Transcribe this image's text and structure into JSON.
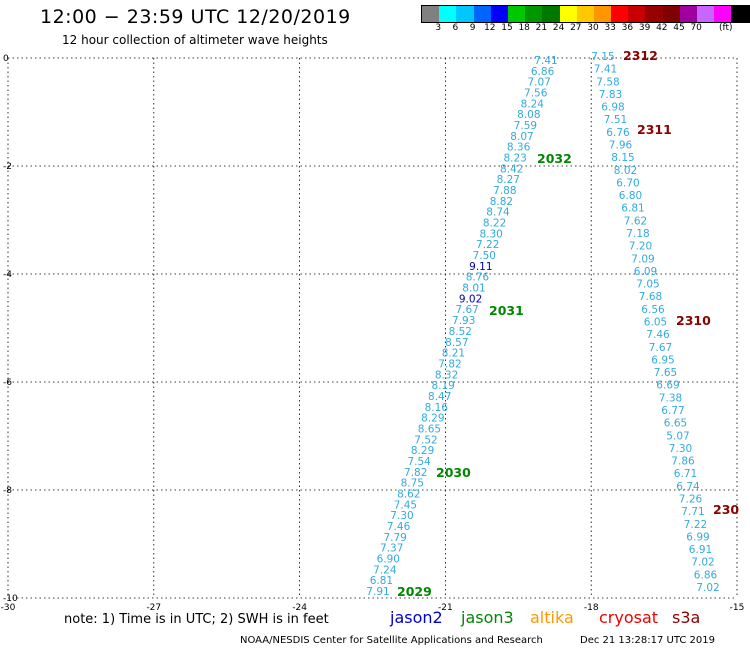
{
  "header": {
    "title": "12:00 − 23:59 UTC 12/20/2019",
    "subtitle": "12 hour collection of altimeter wave heights"
  },
  "colorbar": {
    "colors": [
      "#808080",
      "#00ffff",
      "#00c8ff",
      "#0064ff",
      "#0000ff",
      "#00c800",
      "#009600",
      "#007800",
      "#ffff00",
      "#ffc800",
      "#ff9600",
      "#ff0000",
      "#c80000",
      "#960000",
      "#800000",
      "#a000a0",
      "#c864ff",
      "#ff00ff",
      "#000000"
    ],
    "labels": [
      "3",
      "6",
      "9",
      "12",
      "15",
      "18",
      "21",
      "24",
      "27",
      "30",
      "33",
      "36",
      "39",
      "42",
      "45",
      "70"
    ],
    "unit": "(ft)"
  },
  "map": {
    "lon_range": [
      -30,
      -15
    ],
    "lat_range": [
      -10,
      0
    ],
    "lon_ticks": [
      "-30",
      "-27",
      "-24",
      "-21",
      "-18",
      "-15"
    ],
    "lat_ticks": [
      "0",
      "-2",
      "-4",
      "-6",
      "-8",
      "-10"
    ],
    "tracks": [
      {
        "color": "#33aadd",
        "values": [
          "7.41",
          "6.86",
          "7.07",
          "7.56",
          "8.24",
          "8.08",
          "7.59",
          "8.07",
          "8.36",
          "8.23",
          "8.42",
          "8.27",
          "7.88",
          "8.82",
          "8.74",
          "8.22",
          "8.30",
          "7.22",
          "7.50",
          "9.11",
          "8.76",
          "8.01",
          "9.02",
          "7.67",
          "7.93",
          "8.52",
          "8.57",
          "8.21",
          "7.82",
          "8.32",
          "8.19",
          "8.47",
          "8.16",
          "8.29",
          "8.65",
          "7.52",
          "8.29",
          "7.54",
          "7.82",
          "8.75",
          "8.62",
          "7.45",
          "7.30",
          "7.46",
          "7.79",
          "7.37",
          "6.90",
          "7.24",
          "6.81",
          "7.91"
        ],
        "dark_blue_indices": [
          19,
          22
        ],
        "pass_labels": [
          {
            "text": "2032",
            "color": "#008800"
          },
          {
            "text": "2031",
            "color": "#008800"
          },
          {
            "text": "2030",
            "color": "#008800"
          },
          {
            "text": "2029",
            "color": "#008800"
          }
        ]
      },
      {
        "color": "#33aadd",
        "values": [
          "7.15",
          "7.41",
          "7.58",
          "7.83",
          "6.98",
          "7.51",
          "6.76",
          "7.96",
          "8.15",
          "8.02",
          "6.70",
          "6.80",
          "6.81",
          "7.62",
          "7.18",
          "7.20",
          "7.09",
          "6.09",
          "7.05",
          "7.68",
          "6.56",
          "6.05",
          "7.46",
          "7.67",
          "6.95",
          "7.65",
          "6.69",
          "7.38",
          "6.77",
          "6.65",
          "5.07",
          "7.30",
          "7.86",
          "6.71",
          "6.74",
          "7.26",
          "7.71",
          "7.22",
          "6.99",
          "6.91",
          "7.02",
          "6.86",
          "7.02"
        ],
        "pass_labels": [
          {
            "text": "2312",
            "color": "#8b0000"
          },
          {
            "text": "2311",
            "color": "#8b0000"
          },
          {
            "text": "2310",
            "color": "#8b0000"
          },
          {
            "text": "230",
            "color": "#8b0000"
          }
        ]
      }
    ]
  },
  "legend": {
    "note": "note:  1) Time is in UTC;  2) SWH is in feet",
    "satellites": [
      {
        "name": "jason2",
        "color": "#0000cc"
      },
      {
        "name": "jason3",
        "color": "#008800"
      },
      {
        "name": "altika",
        "color": "#ff9900"
      },
      {
        "name": "cryosat",
        "color": "#ee0000"
      },
      {
        "name": "s3a",
        "color": "#8b0000"
      }
    ]
  },
  "footer": {
    "credit": "NOAA/NESDIS Center for Satellite Applications and Research",
    "timestamp": "Dec 21 13:28:17 UTC 2019"
  }
}
